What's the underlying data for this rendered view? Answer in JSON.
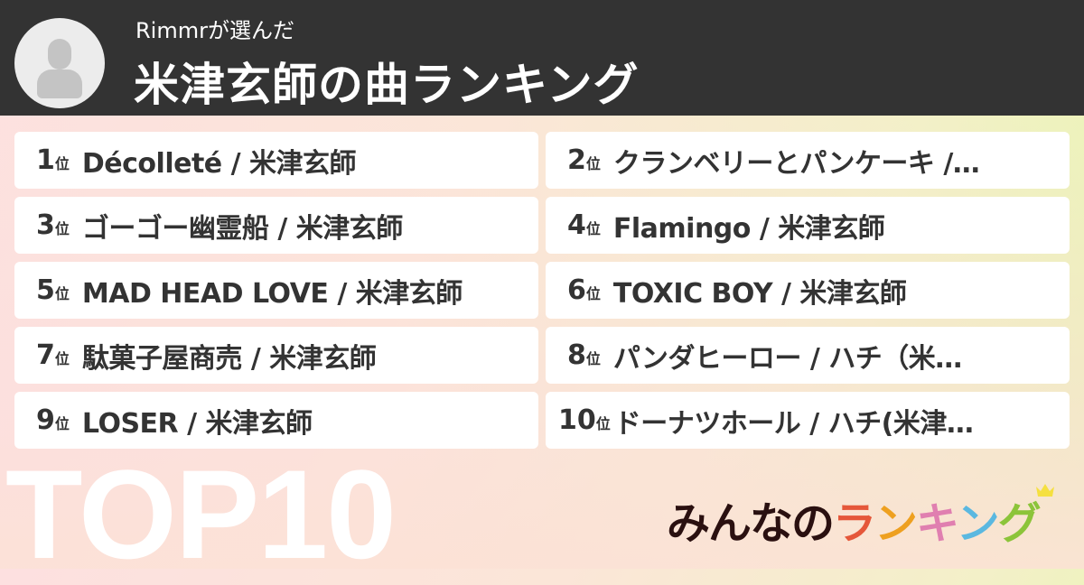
{
  "header": {
    "subtitle": "Rimmrが選んだ",
    "title": "米津玄師の曲ランキング",
    "avatar_icon": "user-silhouette-icon"
  },
  "rank_suffix": "位",
  "rankings": [
    {
      "rank": "1",
      "song": "Décolleté / 米津玄師"
    },
    {
      "rank": "2",
      "song": "クランベリーとパンケーキ /…"
    },
    {
      "rank": "3",
      "song": "ゴーゴー幽霊船 / 米津玄師"
    },
    {
      "rank": "4",
      "song": "Flamingo / 米津玄師"
    },
    {
      "rank": "5",
      "song": "MAD HEAD LOVE / 米津玄師"
    },
    {
      "rank": "6",
      "song": "TOXIC BOY / 米津玄師"
    },
    {
      "rank": "7",
      "song": "駄菓子屋商売 / 米津玄師"
    },
    {
      "rank": "8",
      "song": "パンダヒーロー / ハチ（米…"
    },
    {
      "rank": "9",
      "song": "LOSER / 米津玄師"
    },
    {
      "rank": "10",
      "song": "ドーナツホール / ハチ(米津…"
    }
  ],
  "badge": "TOP10",
  "logo": {
    "prefix": "みんなの",
    "chars": [
      "ラ",
      "ン",
      "キ",
      "ン",
      "グ"
    ],
    "colors": {
      "prefix": "#2a1010",
      "chars": [
        "#e5573a",
        "#eea020",
        "#e07fb0",
        "#5bb8e0",
        "#8cc43a"
      ],
      "crown": "#f5e040"
    }
  },
  "colors": {
    "header_bg": "#333333",
    "text": "#333333"
  }
}
